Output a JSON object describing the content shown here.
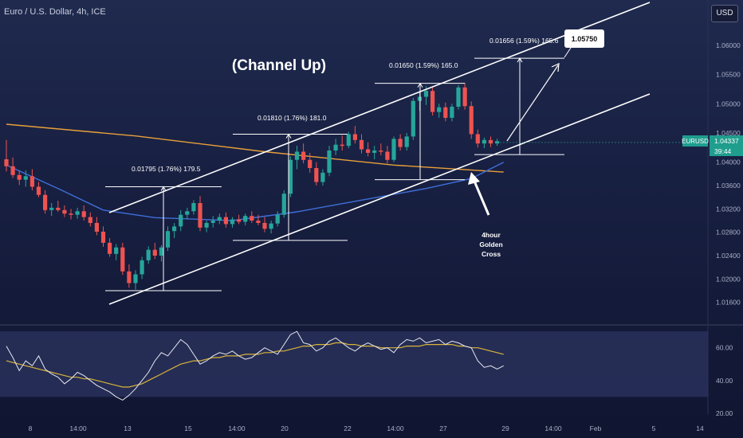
{
  "header": {
    "title": "Euro / U.S. Dollar, 4h, ICE",
    "currency": "USD"
  },
  "price_badge": {
    "symbol": "EURUSD",
    "price": "1.04337",
    "countdown": "39:44"
  },
  "annotations": {
    "pattern_label": "(Channel Up)",
    "target_price": "1.05750",
    "golden_cross": [
      "4hour",
      "Golden",
      "Cross"
    ],
    "swings": [
      "0.01795 (1.76%) 179.5",
      "0.01810 (1.76%) 181.0",
      "0.01650 (1.59%) 165.0",
      "0.01656 (1.59%) 165.6"
    ]
  },
  "colors": {
    "background": "#1b2245",
    "bullish": "#26a69a",
    "bearish": "#ef5350",
    "ma_orange": "#e9a03a",
    "ma_blue": "#3f6fd8",
    "rsi_white": "#e6e8ef",
    "rsi_ma_yellow": "#d9b43a",
    "price_badge": "#1f9e8e"
  },
  "chart_data": [
    {
      "type": "candlestick",
      "title": "Euro / U.S. Dollar, 4h, ICE",
      "y_ticks": [
        1.016,
        1.02,
        1.024,
        1.028,
        1.032,
        1.036,
        1.04,
        1.045,
        1.05,
        1.055,
        1.06
      ],
      "y_tick_labels": [
        "1.01600",
        "1.02000",
        "1.02400",
        "1.02800",
        "1.03200",
        "1.03600",
        "1.04000",
        "1.04500",
        "1.05000",
        "1.05500",
        "1.06000"
      ],
      "ylim": [
        1.0135,
        1.066
      ],
      "x_tick_labels": [
        "8",
        "14:00",
        "13",
        "15",
        "14:00",
        "20",
        "22",
        "14:00",
        "27",
        "29",
        "14:00",
        "Feb",
        "5",
        "14"
      ],
      "ohlc": [
        [
          1.0405,
          1.0438,
          1.0384,
          1.0393
        ],
        [
          1.0393,
          1.0408,
          1.0373,
          1.0378
        ],
        [
          1.0378,
          1.0386,
          1.0361,
          1.037
        ],
        [
          1.037,
          1.0386,
          1.0358,
          1.0376
        ],
        [
          1.0376,
          1.0388,
          1.0352,
          1.0358
        ],
        [
          1.0358,
          1.0366,
          1.034,
          1.0344
        ],
        [
          1.0344,
          1.0352,
          1.0312,
          1.0318
        ],
        [
          1.0318,
          1.033,
          1.0308,
          1.0322
        ],
        [
          1.0322,
          1.0334,
          1.0315,
          1.0318
        ],
        [
          1.0318,
          1.0326,
          1.0306,
          1.0312
        ],
        [
          1.0312,
          1.032,
          1.0302,
          1.031
        ],
        [
          1.031,
          1.0322,
          1.0303,
          1.0316
        ],
        [
          1.0316,
          1.0326,
          1.03,
          1.0306
        ],
        [
          1.0306,
          1.0314,
          1.029,
          1.0296
        ],
        [
          1.0296,
          1.0306,
          1.0275,
          1.0281
        ],
        [
          1.0281,
          1.029,
          1.0255,
          1.0262
        ],
        [
          1.0262,
          1.027,
          1.0238,
          1.0243
        ],
        [
          1.0243,
          1.026,
          1.0232,
          1.0254
        ],
        [
          1.0254,
          1.0262,
          1.0207,
          1.0213
        ],
        [
          1.0213,
          1.0225,
          1.0185,
          1.0193
        ],
        [
          1.0193,
          1.0215,
          1.0182,
          1.0208
        ],
        [
          1.0208,
          1.0238,
          1.02,
          1.0232
        ],
        [
          1.0232,
          1.0256,
          1.0226,
          1.025
        ],
        [
          1.025,
          1.0262,
          1.0234,
          1.024
        ],
        [
          1.024,
          1.0258,
          1.023,
          1.0254
        ],
        [
          1.0254,
          1.029,
          1.0248,
          1.0282
        ],
        [
          1.0282,
          1.0296,
          1.027,
          1.029
        ],
        [
          1.029,
          1.0318,
          1.0282,
          1.031
        ],
        [
          1.031,
          1.0322,
          1.0302,
          1.0316
        ],
        [
          1.0316,
          1.0335,
          1.031,
          1.033
        ],
        [
          1.033,
          1.0342,
          1.0282,
          1.0288
        ],
        [
          1.0288,
          1.03,
          1.028,
          1.0296
        ],
        [
          1.0296,
          1.0308,
          1.0288,
          1.03
        ],
        [
          1.03,
          1.0312,
          1.0294,
          1.0306
        ],
        [
          1.0306,
          1.0314,
          1.0288,
          1.0294
        ],
        [
          1.0294,
          1.0306,
          1.0288,
          1.0302
        ],
        [
          1.0302,
          1.031,
          1.0294,
          1.0298
        ],
        [
          1.0298,
          1.0312,
          1.0292,
          1.0308
        ],
        [
          1.0308,
          1.0316,
          1.0296,
          1.03
        ],
        [
          1.03,
          1.031,
          1.0292,
          1.0296
        ],
        [
          1.0296,
          1.0306,
          1.028,
          1.0286
        ],
        [
          1.0286,
          1.03,
          1.0278,
          1.0295
        ],
        [
          1.0295,
          1.0316,
          1.029,
          1.031
        ],
        [
          1.031,
          1.0352,
          1.0305,
          1.0346
        ],
        [
          1.0346,
          1.041,
          1.034,
          1.0404
        ],
        [
          1.0404,
          1.0428,
          1.0388,
          1.0418
        ],
        [
          1.0418,
          1.0432,
          1.0398,
          1.0404
        ],
        [
          1.0404,
          1.0416,
          1.0382,
          1.039
        ],
        [
          1.039,
          1.04,
          1.036,
          1.0366
        ],
        [
          1.0366,
          1.0388,
          1.036,
          1.0382
        ],
        [
          1.0382,
          1.0428,
          1.0376,
          1.042
        ],
        [
          1.042,
          1.044,
          1.0412,
          1.043
        ],
        [
          1.043,
          1.0446,
          1.042,
          1.0428
        ],
        [
          1.0428,
          1.0452,
          1.0424,
          1.0448
        ],
        [
          1.0448,
          1.0462,
          1.0432,
          1.0438
        ],
        [
          1.0438,
          1.0448,
          1.0415,
          1.0422
        ],
        [
          1.0422,
          1.0434,
          1.041,
          1.0416
        ],
        [
          1.0416,
          1.0428,
          1.0405,
          1.042
        ],
        [
          1.042,
          1.0432,
          1.0412,
          1.0418
        ],
        [
          1.0418,
          1.0428,
          1.0398,
          1.0404
        ],
        [
          1.0404,
          1.0444,
          1.04,
          1.044
        ],
        [
          1.044,
          1.0448,
          1.042,
          1.0426
        ],
        [
          1.0426,
          1.045,
          1.042,
          1.0444
        ],
        [
          1.0444,
          1.051,
          1.0438,
          1.0505
        ],
        [
          1.0505,
          1.0522,
          1.0488,
          1.0512
        ],
        [
          1.0512,
          1.053,
          1.0498,
          1.0522
        ],
        [
          1.0522,
          1.053,
          1.048,
          1.0486
        ],
        [
          1.0486,
          1.05,
          1.0476,
          1.0494
        ],
        [
          1.0494,
          1.0502,
          1.047,
          1.0476
        ],
        [
          1.0476,
          1.05,
          1.047,
          1.0495
        ],
        [
          1.0495,
          1.0532,
          1.049,
          1.0528
        ],
        [
          1.0528,
          1.0536,
          1.049,
          1.0496
        ],
        [
          1.0496,
          1.0504,
          1.044,
          1.0448
        ],
        [
          1.0448,
          1.0456,
          1.0425,
          1.0432
        ],
        [
          1.0432,
          1.0442,
          1.0424,
          1.0438
        ],
        [
          1.0438,
          1.0444,
          1.0426,
          1.0432
        ],
        [
          1.0432,
          1.044,
          1.0428,
          1.0436
        ]
      ],
      "moving_averages": [
        {
          "name": "orange MA",
          "color": "#e9a03a",
          "points": [
            [
              0,
              1.0465
            ],
            [
              20,
              1.0445
            ],
            [
              40,
              1.0418
            ],
            [
              60,
              1.0395
            ],
            [
              77,
              1.0383
            ]
          ]
        },
        {
          "name": "blue MA",
          "color": "#3f6fd8",
          "points": [
            [
              0,
              1.0395
            ],
            [
              8,
              1.0355
            ],
            [
              15,
              1.0318
            ],
            [
              23,
              1.0305
            ],
            [
              35,
              1.03
            ],
            [
              45,
              1.0315
            ],
            [
              55,
              1.0335
            ],
            [
              65,
              1.0355
            ],
            [
              72,
              1.0372
            ],
            [
              77,
              1.04
            ]
          ]
        }
      ]
    },
    {
      "type": "line",
      "title": "",
      "y_ticks": [
        20,
        40,
        60
      ],
      "y_tick_labels": [
        "20.00",
        "40.00",
        "60.00"
      ],
      "ylim": [
        18,
        72
      ],
      "band": [
        30,
        70
      ],
      "series": [
        {
          "values": [
            61,
            54,
            46,
            52,
            49,
            55,
            47,
            44,
            42,
            38,
            41,
            45,
            43,
            40,
            37,
            35,
            33,
            30,
            28,
            31,
            35,
            40,
            45,
            52,
            57,
            55,
            60,
            65,
            62,
            56,
            50,
            52,
            55,
            57,
            56,
            58,
            55,
            53,
            54,
            57,
            60,
            58,
            56,
            62,
            68,
            70,
            63,
            62,
            58,
            60,
            64,
            66,
            63,
            60,
            58,
            61,
            63,
            61,
            59,
            60,
            57,
            62,
            65,
            64,
            66,
            63,
            64,
            65,
            62,
            64,
            63,
            61,
            60,
            52,
            48,
            49,
            47,
            49
          ]
        },
        {
          "values": [
            52,
            51,
            50,
            49,
            48,
            47,
            46,
            45,
            44,
            43,
            42,
            42,
            41,
            41,
            40,
            39,
            38,
            37,
            36,
            36,
            37,
            38,
            40,
            42,
            44,
            46,
            48,
            50,
            51,
            52,
            52,
            53,
            54,
            54,
            55,
            55,
            55,
            56,
            56,
            56,
            57,
            57,
            58,
            58,
            59,
            60,
            61,
            61,
            62,
            62,
            62,
            63,
            63,
            62,
            62,
            61,
            61,
            61,
            60,
            60,
            60,
            60,
            61,
            61,
            61,
            62,
            62,
            62,
            62,
            62,
            61,
            61,
            60,
            60,
            59,
            58,
            57,
            56
          ]
        }
      ]
    }
  ]
}
